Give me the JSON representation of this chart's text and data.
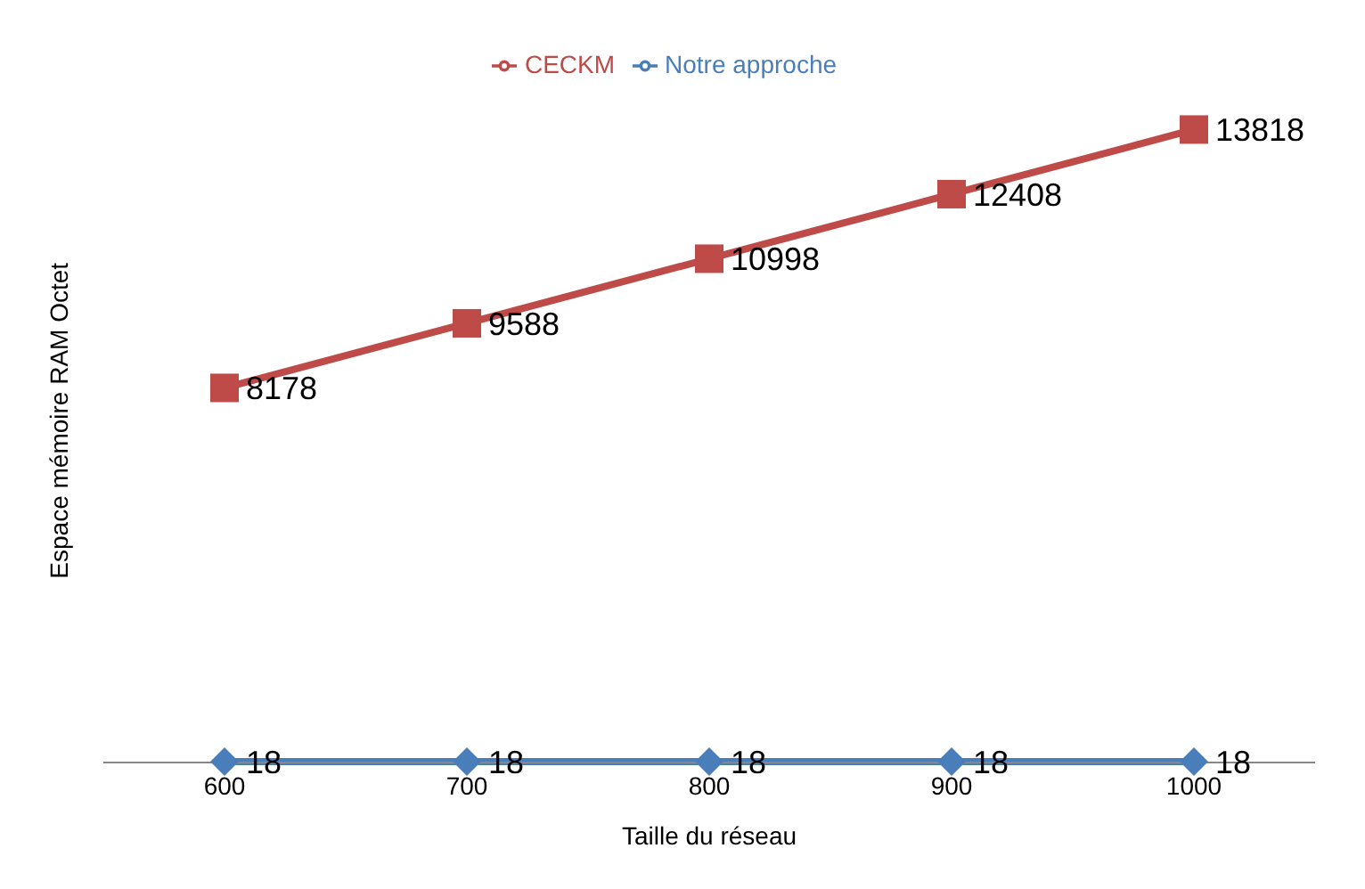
{
  "chart_data": {
    "type": "line",
    "categories": [
      "600",
      "700",
      "800",
      "900",
      "1000"
    ],
    "xlabel": "Taille du réseau",
    "ylabel": "Espace mémoire RAM Octet",
    "series": [
      {
        "name": "Notre approche",
        "color": "#4a7ebb",
        "marker": "diamond",
        "values": [
          18,
          18,
          18,
          18,
          18
        ]
      },
      {
        "name": "CECKM",
        "color": "#be4b48",
        "marker": "square",
        "values": [
          8178,
          9588,
          10998,
          12408,
          13818
        ]
      }
    ],
    "data_labels": true,
    "legend": "top",
    "grid": false
  }
}
